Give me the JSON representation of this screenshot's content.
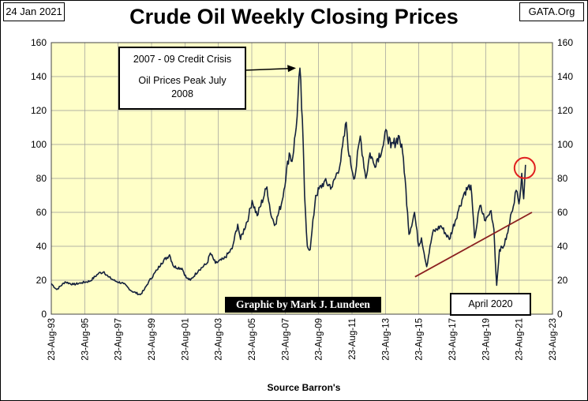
{
  "header": {
    "date": "24 Jan 2021",
    "source_site": "GATA.Org"
  },
  "colors": {
    "plot_background": "#FFFFC8",
    "series_line": "#14213D",
    "trendline": "#8B2020",
    "highlight_circle": "#E02020"
  },
  "chart_data": {
    "type": "line",
    "title": "Crude Oil Weekly Closing Prices",
    "xlabel": "Source Barron's",
    "ylabel": "",
    "ylim": [
      0,
      160
    ],
    "y_ticks": [
      "0",
      "20",
      "40",
      "60",
      "80",
      "100",
      "120",
      "140",
      "160"
    ],
    "x_range": [
      "1993-08-23",
      "2023-08-23"
    ],
    "x_tick_labels": [
      "23-Aug-93",
      "23-Aug-95",
      "23-Aug-97",
      "23-Aug-99",
      "23-Aug-01",
      "23-Aug-03",
      "23-Aug-05",
      "23-Aug-07",
      "23-Aug-09",
      "23-Aug-11",
      "23-Aug-13",
      "23-Aug-15",
      "23-Aug-17",
      "23-Aug-19",
      "23-Aug-21",
      "23-Aug-23"
    ],
    "grid": true,
    "secondary_y_axis": true,
    "series": [
      {
        "x": [
          "1993-08-23",
          "1993-12-20",
          "1994-06-20",
          "1994-12-20",
          "1995-06-20",
          "1995-12-20",
          "1996-06-20",
          "1996-10-20",
          "1997-01-20",
          "1997-06-20",
          "1997-12-20",
          "1998-06-20",
          "1998-12-20",
          "1999-03-20",
          "1999-06-20",
          "1999-12-20",
          "2000-03-20",
          "2000-09-20",
          "2000-12-20",
          "2001-06-20",
          "2001-09-20",
          "2001-12-20",
          "2002-06-20",
          "2002-12-20",
          "2003-03-01",
          "2003-06-20",
          "2003-12-20",
          "2004-06-20",
          "2004-10-20",
          "2004-12-20",
          "2005-06-20",
          "2005-08-30",
          "2005-12-20",
          "2006-07-20",
          "2006-10-20",
          "2007-01-20",
          "2007-06-20",
          "2007-11-20",
          "2008-01-20",
          "2008-04-20",
          "2008-07-11",
          "2008-09-20",
          "2008-10-20",
          "2008-12-20",
          "2009-02-20",
          "2009-06-20",
          "2009-12-20",
          "2010-06-20",
          "2010-12-20",
          "2011-04-20",
          "2011-06-20",
          "2011-10-20",
          "2012-02-20",
          "2012-06-20",
          "2012-09-20",
          "2012-12-20",
          "2013-06-20",
          "2013-09-20",
          "2013-12-20",
          "2014-06-20",
          "2014-09-20",
          "2014-12-20",
          "2015-01-20",
          "2015-05-20",
          "2015-08-20",
          "2015-10-20",
          "2016-02-10",
          "2016-06-20",
          "2016-12-20",
          "2017-06-20",
          "2017-12-20",
          "2018-05-20",
          "2018-10-03",
          "2018-12-24",
          "2019-04-20",
          "2019-08-20",
          "2019-12-20",
          "2020-02-20",
          "2020-03-20",
          "2020-04-20",
          "2020-06-20",
          "2020-09-20",
          "2020-12-20",
          "2021-03-10",
          "2021-06-20",
          "2021-08-20",
          "2021-10-20",
          "2021-12-01",
          "2022-01-10"
        ],
        "y": [
          18,
          14.5,
          19,
          17.5,
          18.5,
          19.5,
          24,
          25,
          22,
          19.5,
          18,
          13.5,
          11.5,
          14.5,
          19,
          26,
          30,
          35,
          28,
          27,
          21.5,
          20,
          26,
          30,
          36,
          30,
          32.5,
          38.5,
          53,
          44,
          58,
          67,
          58,
          75,
          58,
          53,
          67,
          95,
          90,
          110,
          145,
          100,
          70,
          40,
          38,
          70,
          78,
          75,
          90,
          113,
          93,
          80,
          105,
          80,
          95,
          88,
          98,
          108,
          98,
          105,
          92,
          60,
          47,
          60,
          40,
          45,
          28,
          48,
          52,
          44,
          60,
          72,
          76,
          45,
          64,
          55,
          61,
          50,
          32,
          17,
          38,
          40,
          48,
          60,
          73,
          65,
          83,
          68,
          88
        ]
      }
    ],
    "trendline": {
      "x": [
        "2015-06-01",
        "2022-06-01"
      ],
      "y": [
        22,
        60
      ]
    },
    "annotations": [
      {
        "text": "2007 - 09 Credit Crisis",
        "line2": "Oil Prices Peak July 2008",
        "points_to": {
          "x": "2008-07-11",
          "y": 145
        }
      },
      {
        "text": "April 2020"
      }
    ],
    "watermark": "Graphic by Mark J. Lundeen"
  }
}
